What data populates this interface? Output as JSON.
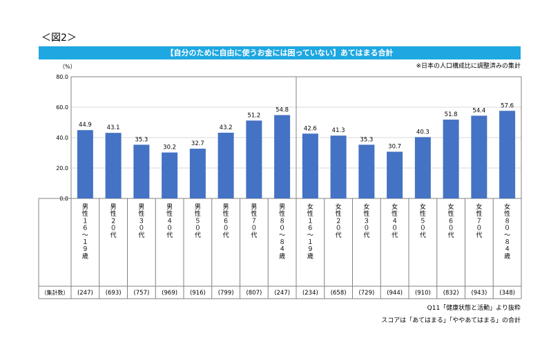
{
  "figure_label": "＜図2＞",
  "note_top": "※日本の人口構成比に調整済みの集計",
  "note_source": "Q11「健康状態と活動」より抜粋",
  "note_score": "スコアは「あてはまる」「ややあてはまる」の合計",
  "colors": {
    "bar": "#4472c4",
    "banner": "#1ea7e1",
    "grid": "#d9d9d9",
    "axis": "#808080"
  },
  "chart_data": {
    "type": "bar",
    "title": "【自分のために自由に使うお金には困っていない】あてはまる合計",
    "ylabel": "（%）",
    "ylim": [
      0,
      80
    ],
    "yticks": [
      "0.0",
      "20.0",
      "40.0",
      "60.0",
      "80.0"
    ],
    "categories": [
      "男性16~19歳",
      "男性20代",
      "男性30代",
      "男性40代",
      "男性50代",
      "男性60代",
      "男性70代",
      "男性80~84歳",
      "女性16~19歳",
      "女性20代",
      "女性30代",
      "女性40代",
      "女性50代",
      "女性60代",
      "女性70代",
      "女性80~84歳"
    ],
    "category_labels": [
      "男性１６～１９歳",
      "男性２０代",
      "男性３０代",
      "男性４０代",
      "男性５０代",
      "男性６０代",
      "男性７０代",
      "男性８０～８４歳",
      "女性１６～１９歳",
      "女性２０代",
      "女性３０代",
      "女性４０代",
      "女性５０代",
      "女性６０代",
      "女性７０代",
      "女性８０～８４歳"
    ],
    "values": [
      44.9,
      43.1,
      35.3,
      30.2,
      32.7,
      43.2,
      51.2,
      54.8,
      42.6,
      41.3,
      35.3,
      30.7,
      40.3,
      51.8,
      54.4,
      57.6
    ],
    "value_labels": [
      "44.9",
      "43.1",
      "35.3",
      "30.2",
      "32.7",
      "43.2",
      "51.2",
      "54.8",
      "42.6",
      "41.3",
      "35.3",
      "30.7",
      "40.3",
      "51.8",
      "54.4",
      "57.6"
    ],
    "sample_header": "（集計数）",
    "sample_counts": [
      "(247)",
      "(693)",
      "(757)",
      "(969)",
      "(916)",
      "(799)",
      "(807)",
      "(247)",
      "(234)",
      "(658)",
      "(729)",
      "(944)",
      "(910)",
      "(832)",
      "(943)",
      "(348)"
    ],
    "grid": true,
    "legend": "none"
  }
}
